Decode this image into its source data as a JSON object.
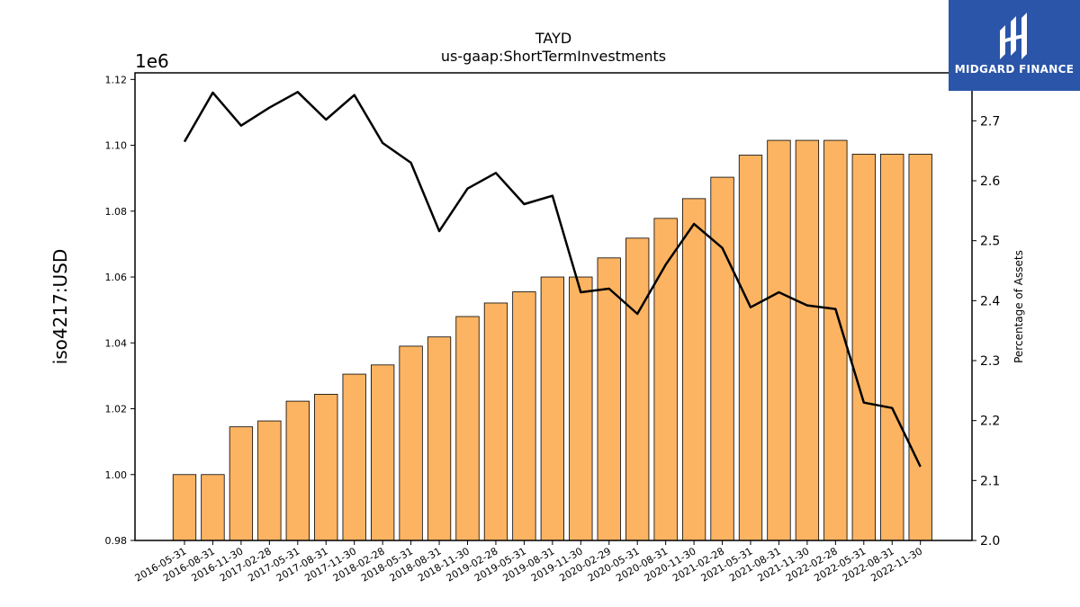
{
  "page": {
    "title": "TAYD",
    "subtitle": "us-gaap:ShortTermInvestments",
    "logo_text": "MIDGARD FINANCE"
  },
  "colors": {
    "bar_fill": "#FDB462",
    "bar_edge": "#000000",
    "line": "#000000",
    "logo_bg": "#2A55A8"
  },
  "chart_data": {
    "type": "bar",
    "categories": [
      "2016-05-31",
      "2016-08-31",
      "2016-11-30",
      "2017-02-28",
      "2017-05-31",
      "2017-08-31",
      "2017-11-30",
      "2018-02-28",
      "2018-05-31",
      "2018-08-31",
      "2018-11-30",
      "2019-02-28",
      "2019-05-31",
      "2019-08-31",
      "2019-11-30",
      "2020-02-29",
      "2020-05-31",
      "2020-08-31",
      "2020-11-30",
      "2021-02-28",
      "2021-05-31",
      "2021-08-31",
      "2021-11-30",
      "2022-02-28",
      "2022-05-31",
      "2022-08-31",
      "2022-11-30"
    ],
    "series": [
      {
        "type": "bar",
        "axis": "left",
        "values": [
          1000000,
          1000000,
          1014500,
          1016300,
          1022300,
          1024400,
          1030500,
          1033300,
          1039000,
          1041800,
          1048000,
          1052100,
          1055500,
          1060000,
          1060000,
          1065800,
          1071800,
          1077800,
          1083800,
          1090300,
          1097000,
          1101500,
          1101500,
          1101500,
          1097300,
          1097300,
          1097300
        ]
      },
      {
        "type": "line",
        "axis": "right",
        "values": [
          2.665,
          2.747,
          2.692,
          2.722,
          2.748,
          2.702,
          2.743,
          2.663,
          2.63,
          2.516,
          2.587,
          2.613,
          2.561,
          2.575,
          2.414,
          2.42,
          2.378,
          2.46,
          2.528,
          2.488,
          2.389,
          2.414,
          2.392,
          2.386,
          2.23,
          2.221,
          2.123
        ]
      }
    ],
    "ylabel": "iso4217:USD",
    "ylabel_right": "Percentage of Assets",
    "offset_label": "1e6",
    "ylim": [
      980000,
      1122000
    ],
    "ylim_right": [
      2.0,
      2.78
    ],
    "yticks": [
      "0.98",
      "1.00",
      "1.02",
      "1.04",
      "1.06",
      "1.08",
      "1.10",
      "1.12"
    ],
    "yticks_right": [
      "2.0",
      "2.1",
      "2.2",
      "2.3",
      "2.4",
      "2.5",
      "2.6",
      "2.7"
    ],
    "grid": false
  }
}
